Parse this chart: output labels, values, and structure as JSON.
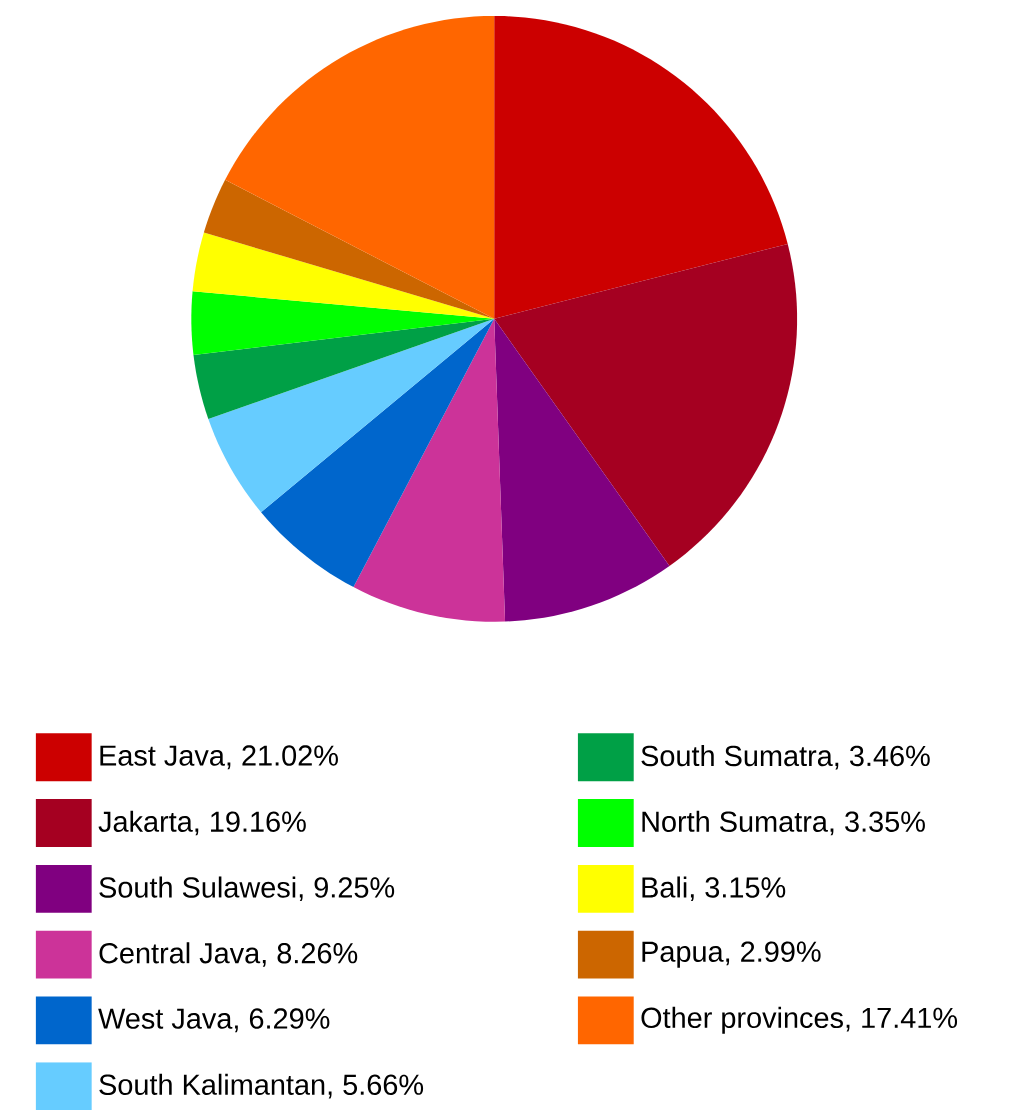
{
  "chart_data": {
    "type": "pie",
    "categories": [
      "East Java, 21.02%",
      "Jakarta, 19.16%",
      "South Sulawesi, 9.25%",
      "Central Java, 8.26%",
      "West Java, 6.29%",
      "South Kalimantan, 5.66%",
      "South Sumatra, 3.46%",
      "North Sumatra, 3.35%",
      "Bali, 3.15%",
      "Papua, 2.99%",
      "Other provinces, 17.41%"
    ],
    "values": [
      21.02,
      19.16,
      9.25,
      8.26,
      6.29,
      5.66,
      3.46,
      3.35,
      3.15,
      2.99,
      17.41
    ],
    "colors": [
      "#cc0000",
      "#a50021",
      "#800080",
      "#cc3399",
      "#0066cc",
      "#66ccff",
      "#00a046",
      "#00ff00",
      "#ffff00",
      "#cc6600",
      "#ff6600"
    ],
    "legend": "bottom"
  }
}
